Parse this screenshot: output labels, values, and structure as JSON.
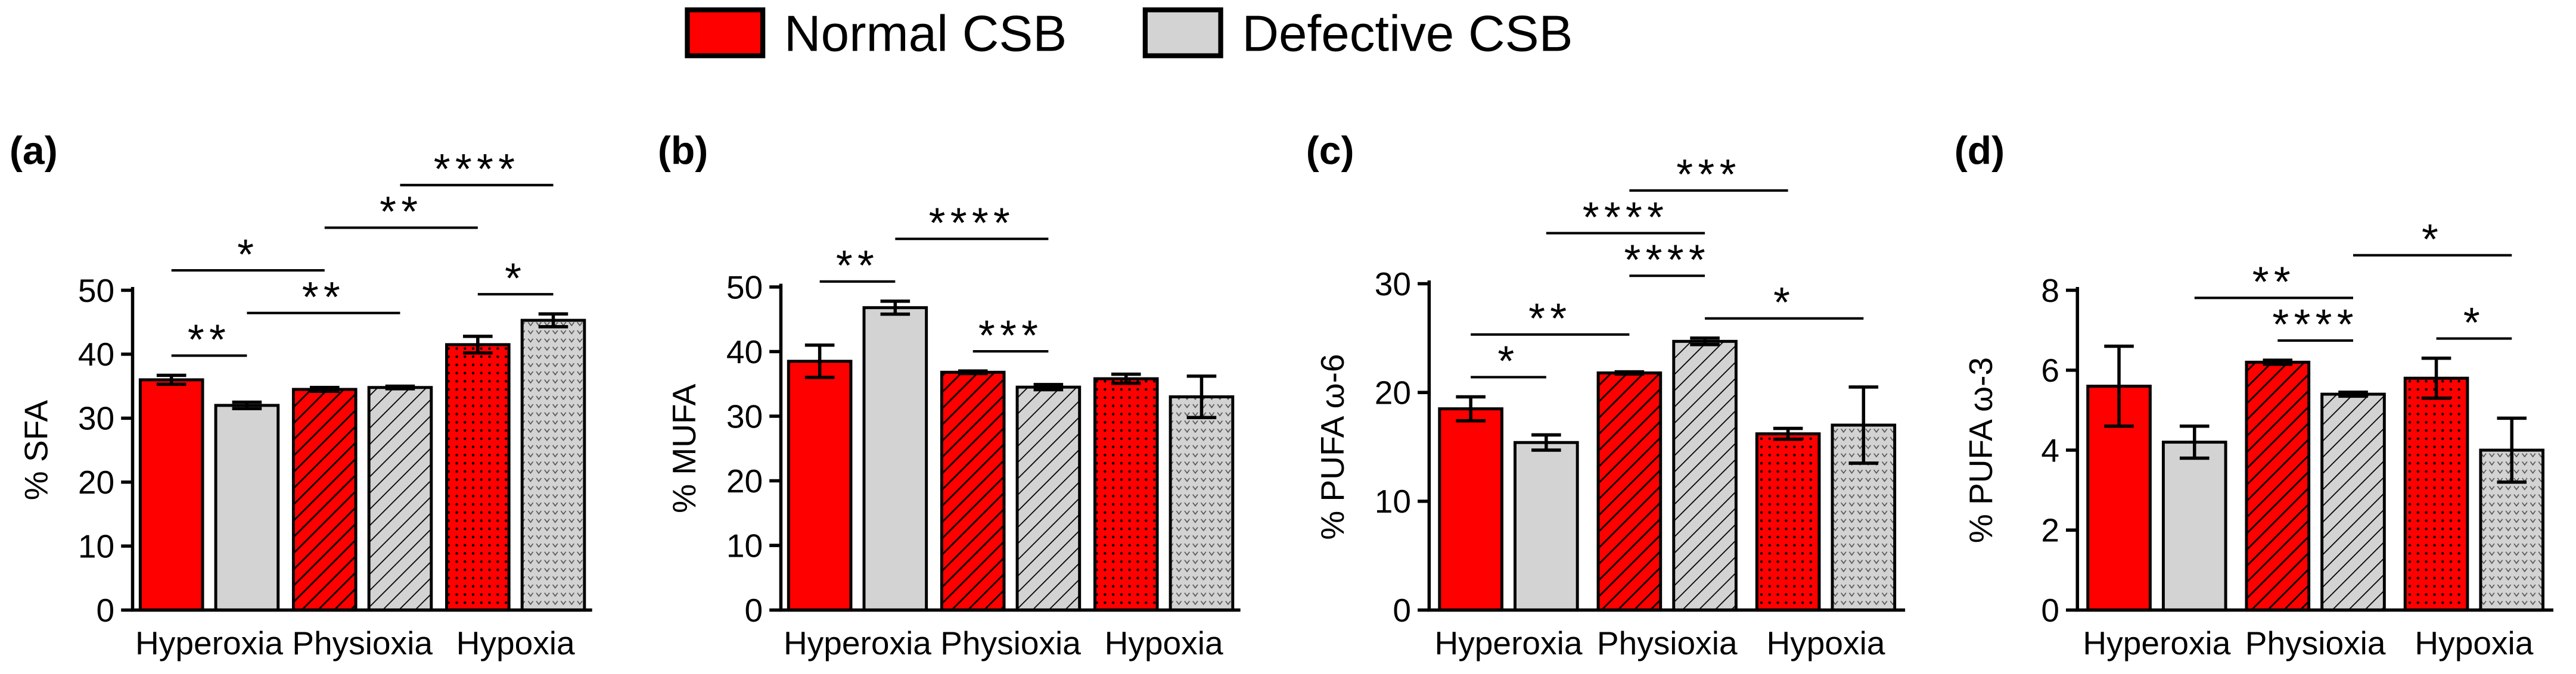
{
  "legend": [
    {
      "name": "Normal CSB",
      "color": "#ff0000"
    },
    {
      "name": "Defective CSB",
      "color": "#d3d3d3"
    }
  ],
  "chart_data": [
    {
      "type": "bar",
      "label": "(a)",
      "y_label": "% SFA",
      "categories": [
        "Hyperoxia",
        "Physioxia",
        "Hypoxia"
      ],
      "fill_patterns": [
        "solid",
        "hatch",
        "dots"
      ],
      "series": [
        {
          "color": "#ff0000",
          "values": [
            36,
            34.5,
            41.5
          ],
          "errors": [
            0.7,
            0.3,
            1.3
          ]
        },
        {
          "color": "#d3d3d3",
          "values": [
            32,
            34.8,
            45.3
          ],
          "errors": [
            0.5,
            0.2,
            1.0
          ]
        }
      ],
      "ylim": [
        0,
        50
      ],
      "yticks": [
        0,
        10,
        20,
        30,
        40,
        50
      ],
      "annotations": [
        {
          "text": "**",
          "bars": [
            0,
            1
          ]
        },
        {
          "text": "**",
          "bars": [
            1,
            3
          ]
        },
        {
          "text": "*",
          "bars": [
            0,
            2
          ]
        },
        {
          "text": "*",
          "bars": [
            4,
            5
          ]
        },
        {
          "text": "**",
          "bars": [
            2,
            4
          ]
        },
        {
          "text": "****",
          "bars": [
            3,
            5
          ]
        }
      ]
    },
    {
      "type": "bar",
      "label": "(b)",
      "y_label": "% MUFA",
      "categories": [
        "Hyperoxia",
        "Physioxia",
        "Hypoxia"
      ],
      "fill_patterns": [
        "solid",
        "hatch",
        "dots"
      ],
      "series": [
        {
          "color": "#ff0000",
          "values": [
            38.5,
            36.8,
            35.8
          ],
          "errors": [
            2.5,
            0.2,
            0.7
          ]
        },
        {
          "color": "#d3d3d3",
          "values": [
            46.8,
            34.5,
            33
          ],
          "errors": [
            1,
            0.4,
            3.2
          ]
        }
      ],
      "ylim": [
        0,
        50
      ],
      "yticks": [
        0,
        10,
        20,
        30,
        40,
        50
      ],
      "annotations": [
        {
          "text": "**",
          "bars": [
            0,
            1
          ]
        },
        {
          "text": "***",
          "bars": [
            2,
            3
          ]
        },
        {
          "text": "****",
          "bars": [
            1,
            3
          ]
        }
      ]
    },
    {
      "type": "bar",
      "label": "(c)",
      "y_label": "% PUFA ω-6",
      "categories": [
        "Hyperoxia",
        "Physioxia",
        "Hypoxia"
      ],
      "fill_patterns": [
        "solid",
        "hatch",
        "dots"
      ],
      "series": [
        {
          "color": "#ff0000",
          "values": [
            18.5,
            21.8,
            16.2
          ],
          "errors": [
            1.1,
            0.1,
            0.5
          ]
        },
        {
          "color": "#d3d3d3",
          "values": [
            15.4,
            24.7,
            17
          ],
          "errors": [
            0.7,
            0.3,
            3.5
          ]
        }
      ],
      "ylim": [
        0,
        30
      ],
      "yticks": [
        0,
        10,
        20,
        30
      ],
      "annotations": [
        {
          "text": "*",
          "bars": [
            0,
            1
          ]
        },
        {
          "text": "**",
          "bars": [
            0,
            2
          ]
        },
        {
          "text": "*",
          "bars": [
            3,
            5
          ]
        },
        {
          "text": "****",
          "bars": [
            2,
            3
          ]
        },
        {
          "text": "****",
          "bars": [
            1,
            3
          ]
        },
        {
          "text": "***",
          "bars": [
            2,
            4
          ]
        }
      ]
    },
    {
      "type": "bar",
      "label": "(d)",
      "y_label": "% PUFA ω-3",
      "categories": [
        "Hyperoxia",
        "Physioxia",
        "Hypoxia"
      ],
      "fill_patterns": [
        "solid",
        "hatch",
        "dots"
      ],
      "series": [
        {
          "color": "#ff0000",
          "values": [
            5.6,
            6.2,
            5.8
          ],
          "errors": [
            1.0,
            0.05,
            0.5
          ]
        },
        {
          "color": "#d3d3d3",
          "values": [
            4.2,
            5.4,
            4.0
          ],
          "errors": [
            0.4,
            0.05,
            0.8
          ]
        }
      ],
      "ylim": [
        0,
        8
      ],
      "yticks": [
        0,
        2,
        4,
        6,
        8
      ],
      "annotations": [
        {
          "text": "*",
          "bars": [
            4,
            5
          ]
        },
        {
          "text": "****",
          "bars": [
            2,
            3
          ]
        },
        {
          "text": "**",
          "bars": [
            1,
            3
          ]
        },
        {
          "text": "*",
          "bars": [
            3,
            5
          ]
        }
      ]
    }
  ]
}
